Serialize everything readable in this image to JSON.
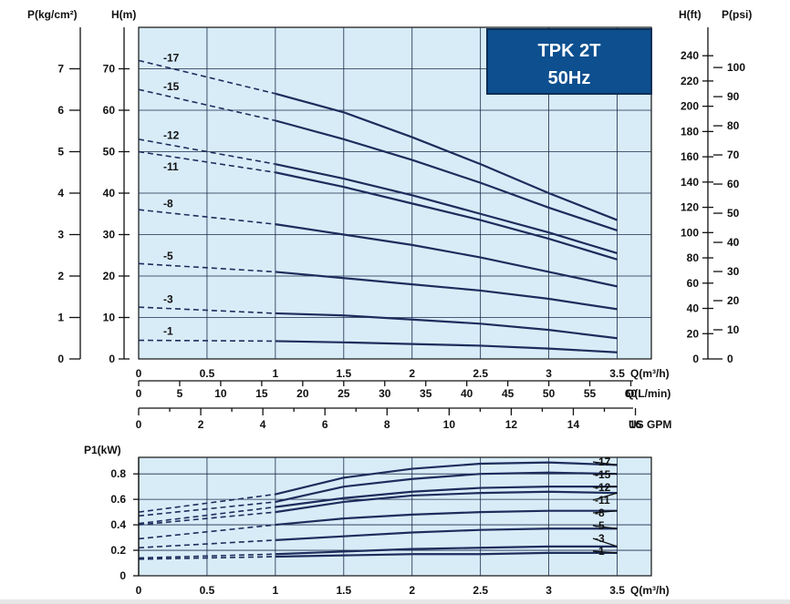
{
  "chart_data": [
    {
      "type": "line",
      "title": "TPK 2T",
      "subtitle": "50Hz",
      "ylabel_left_inner": "H(m)",
      "ylabel_left_outer": "P(kg/cm²)",
      "ylabel_right_inner": "H(ft)",
      "ylabel_right_outer": "P(psi)",
      "x_axes": [
        {
          "label": "Q(m³/h)",
          "ticks": [
            "0",
            "0.5",
            "1",
            "1.5",
            "2",
            "2.5",
            "3",
            "3.5"
          ],
          "range": [
            0,
            3.75
          ]
        },
        {
          "label": "Q(L/min)",
          "ticks": [
            "0",
            "5",
            "10",
            "15",
            "20",
            "25",
            "30",
            "35",
            "40",
            "45",
            "50",
            "55",
            "60"
          ]
        },
        {
          "label": "US GPM",
          "ticks": [
            "0",
            "2",
            "4",
            "6",
            "8",
            "10",
            "12",
            "14",
            "16"
          ]
        }
      ],
      "y_axes": {
        "H_m": {
          "ticks": [
            "0",
            "10",
            "20",
            "30",
            "40",
            "50",
            "60",
            "70"
          ],
          "range": [
            0,
            80
          ]
        },
        "P_kgcm2": {
          "ticks": [
            "0",
            "1",
            "2",
            "3",
            "4",
            "5",
            "6",
            "7"
          ]
        },
        "H_ft": {
          "ticks": [
            "0",
            "20",
            "40",
            "60",
            "80",
            "100",
            "120",
            "140",
            "160",
            "180",
            "200",
            "220",
            "240"
          ]
        },
        "P_psi": {
          "ticks": [
            "0",
            "10",
            "20",
            "30",
            "40",
            "50",
            "60",
            "70",
            "80",
            "90",
            "100"
          ]
        }
      },
      "grid": true,
      "series": [
        {
          "name": "-17",
          "dashed_x": [
            0,
            1
          ],
          "dashed_y": [
            72,
            64
          ],
          "x": [
            1,
            1.5,
            2,
            2.5,
            3,
            3.5
          ],
          "y": [
            64,
            59.5,
            53.5,
            47,
            40,
            33.5
          ]
        },
        {
          "name": "-15",
          "dashed_x": [
            0,
            1
          ],
          "dashed_y": [
            65,
            57.5
          ],
          "x": [
            1,
            1.5,
            2,
            2.5,
            3,
            3.5
          ],
          "y": [
            57.5,
            53,
            48,
            42.5,
            36.5,
            31
          ]
        },
        {
          "name": "-12",
          "dashed_x": [
            0,
            1
          ],
          "dashed_y": [
            53,
            47
          ],
          "x": [
            1,
            1.5,
            2,
            2.5,
            3,
            3.5
          ],
          "y": [
            47,
            43.5,
            39.5,
            35,
            30.5,
            25.5
          ]
        },
        {
          "name": "-11",
          "dashed_x": [
            0,
            1
          ],
          "dashed_y": [
            50,
            45
          ],
          "x": [
            1,
            1.5,
            2,
            2.5,
            3,
            3.5
          ],
          "y": [
            45,
            41.5,
            37.5,
            33.5,
            29,
            24
          ]
        },
        {
          "name": "-8",
          "dashed_x": [
            0,
            1
          ],
          "dashed_y": [
            36,
            32.5
          ],
          "x": [
            1,
            1.5,
            2,
            2.5,
            3,
            3.5
          ],
          "y": [
            32.5,
            30,
            27.5,
            24.5,
            21,
            17.5
          ]
        },
        {
          "name": "-5",
          "dashed_x": [
            0,
            1
          ],
          "dashed_y": [
            23,
            21
          ],
          "x": [
            1,
            1.5,
            2,
            2.5,
            3,
            3.5
          ],
          "y": [
            21,
            19.5,
            18,
            16.5,
            14.5,
            12
          ]
        },
        {
          "name": "-3",
          "dashed_x": [
            0,
            1
          ],
          "dashed_y": [
            12.5,
            11
          ],
          "x": [
            1,
            1.5,
            2,
            2.5,
            3,
            3.5
          ],
          "y": [
            11,
            10.5,
            9.5,
            8.5,
            7,
            5
          ]
        },
        {
          "name": "-1",
          "dashed_x": [
            0,
            1
          ],
          "dashed_y": [
            4.5,
            4.3
          ],
          "x": [
            1,
            1.5,
            2,
            2.5,
            3,
            3.5
          ],
          "y": [
            4.3,
            4,
            3.6,
            3.2,
            2.5,
            1.6
          ]
        }
      ]
    },
    {
      "type": "line",
      "ylabel": "P1(kW)",
      "xlabel": "Q(m³/h)",
      "x_ticks": [
        "0",
        "0.5",
        "1",
        "1.5",
        "2",
        "2.5",
        "3",
        "3.5"
      ],
      "y_ticks": [
        "0",
        "0.2",
        "0.4",
        "0.6",
        "0.8"
      ],
      "xlim": [
        0,
        3.75
      ],
      "ylim": [
        0,
        0.93
      ],
      "grid": true,
      "series": [
        {
          "name": "-17",
          "dashed_x": [
            0,
            1
          ],
          "dashed_y": [
            0.5,
            0.64
          ],
          "x": [
            1,
            1.5,
            2,
            2.5,
            3,
            3.5
          ],
          "y": [
            0.64,
            0.77,
            0.84,
            0.88,
            0.89,
            0.87
          ]
        },
        {
          "name": "-15",
          "dashed_x": [
            0,
            1
          ],
          "dashed_y": [
            0.47,
            0.58
          ],
          "x": [
            1,
            1.5,
            2,
            2.5,
            3,
            3.5
          ],
          "y": [
            0.58,
            0.7,
            0.76,
            0.8,
            0.81,
            0.8
          ]
        },
        {
          "name": "-12",
          "dashed_x": [
            0,
            1
          ],
          "dashed_y": [
            0.41,
            0.54
          ],
          "x": [
            1,
            1.5,
            2,
            2.5,
            3,
            3.5
          ],
          "y": [
            0.54,
            0.61,
            0.66,
            0.69,
            0.7,
            0.7
          ]
        },
        {
          "name": "-11",
          "dashed_x": [
            0,
            1
          ],
          "dashed_y": [
            0.4,
            0.5
          ],
          "x": [
            1,
            1.5,
            2,
            2.5,
            3,
            3.5
          ],
          "y": [
            0.5,
            0.58,
            0.63,
            0.65,
            0.66,
            0.65
          ]
        },
        {
          "name": "-8",
          "dashed_x": [
            0,
            1
          ],
          "dashed_y": [
            0.29,
            0.4
          ],
          "x": [
            1,
            1.5,
            2,
            2.5,
            3,
            3.5
          ],
          "y": [
            0.4,
            0.45,
            0.48,
            0.5,
            0.51,
            0.51
          ]
        },
        {
          "name": "-5",
          "dashed_x": [
            0,
            1
          ],
          "dashed_y": [
            0.22,
            0.28
          ],
          "x": [
            1,
            1.5,
            2,
            2.5,
            3,
            3.5
          ],
          "y": [
            0.28,
            0.31,
            0.34,
            0.36,
            0.37,
            0.37
          ]
        },
        {
          "name": "-3",
          "dashed_x": [
            0,
            1
          ],
          "dashed_y": [
            0.14,
            0.17
          ],
          "x": [
            1,
            1.5,
            2,
            2.5,
            3,
            3.5
          ],
          "y": [
            0.17,
            0.19,
            0.21,
            0.22,
            0.23,
            0.23
          ]
        },
        {
          "name": "-1",
          "dashed_x": [
            0,
            1
          ],
          "dashed_y": [
            0.13,
            0.15
          ],
          "x": [
            1,
            1.5,
            2,
            2.5,
            3,
            3.5
          ],
          "y": [
            0.15,
            0.16,
            0.17,
            0.17,
            0.18,
            0.18
          ]
        }
      ]
    }
  ]
}
